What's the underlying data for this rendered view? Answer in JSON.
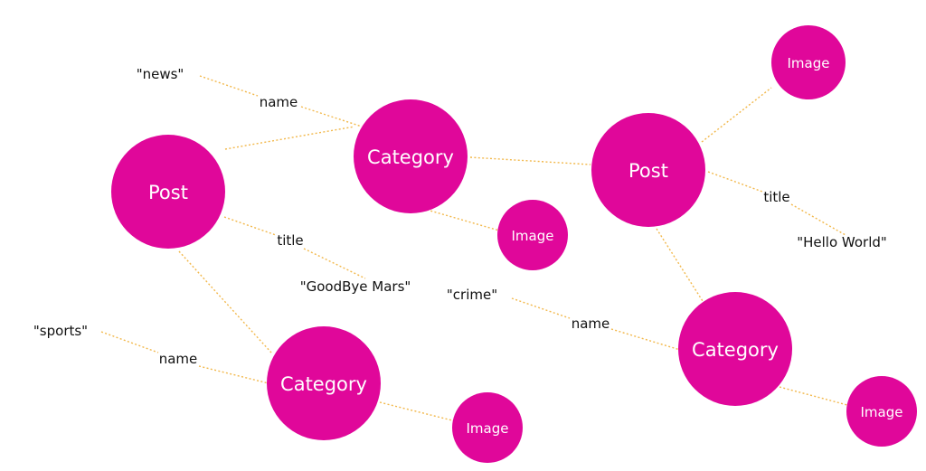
{
  "colors": {
    "node": "#e0079a",
    "edge": "#f2b84b",
    "text": "#111111",
    "node_text": "#ffffff"
  },
  "nodes": [
    {
      "id": "post_left",
      "label": "Post"
    },
    {
      "id": "cat_news",
      "label": "Category"
    },
    {
      "id": "post_right",
      "label": "Post"
    },
    {
      "id": "cat_sports",
      "label": "Category"
    },
    {
      "id": "cat_crime",
      "label": "Category"
    },
    {
      "id": "img_top_right",
      "label": "Image"
    },
    {
      "id": "img_mid",
      "label": "Image"
    },
    {
      "id": "img_bottom_mid",
      "label": "Image"
    },
    {
      "id": "img_bottom_right",
      "label": "Image"
    }
  ],
  "literals": [
    {
      "id": "lit_news",
      "text": "\"news\""
    },
    {
      "id": "lit_sports",
      "text": "\"sports\""
    },
    {
      "id": "lit_goodbye",
      "text": "\"GoodBye Mars\""
    },
    {
      "id": "lit_crime",
      "text": "\"crime\""
    },
    {
      "id": "lit_hello",
      "text": "\"Hello World\""
    }
  ],
  "edge_labels": [
    {
      "id": "el_name_news",
      "text": "name"
    },
    {
      "id": "el_title_left",
      "text": "title"
    },
    {
      "id": "el_name_sports",
      "text": "name"
    },
    {
      "id": "el_name_crime",
      "text": "name"
    },
    {
      "id": "el_title_right",
      "text": "title"
    }
  ]
}
